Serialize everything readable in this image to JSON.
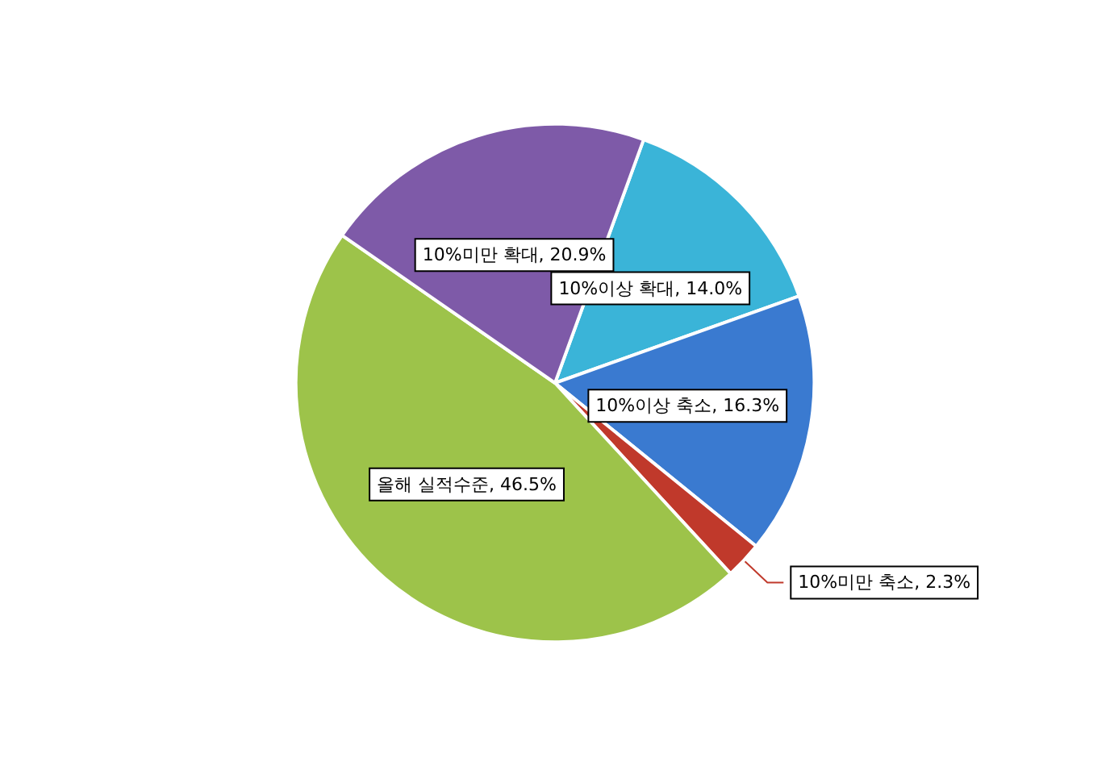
{
  "chart_data": {
    "type": "pie",
    "categories": [
      "10%이상 확대",
      "10%이상 축소",
      "10%미만 축소",
      "올해 실적수준",
      "10%미만 확대"
    ],
    "values": [
      14.0,
      16.3,
      2.3,
      46.5,
      20.9
    ],
    "colors": [
      "#3ab4d8",
      "#3a7ad0",
      "#c0392b",
      "#9dc34a",
      "#7e5aa8"
    ],
    "value_labels": [
      "14.0%",
      "16.3%",
      "2.3%",
      "46.5%",
      "20.9%"
    ],
    "legend": false
  }
}
